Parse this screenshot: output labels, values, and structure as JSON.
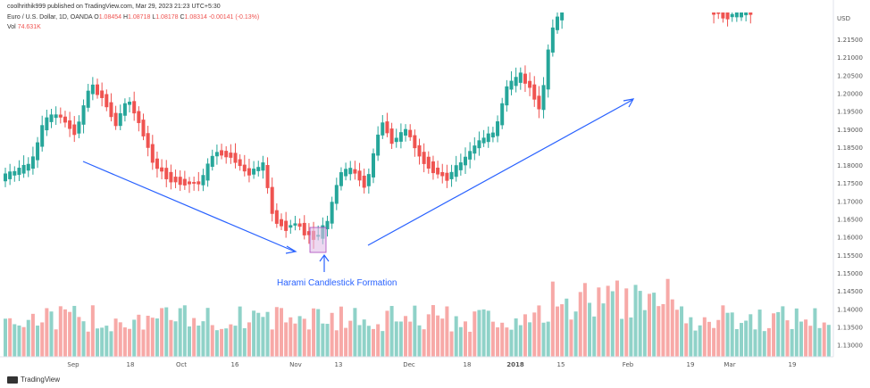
{
  "header": {
    "publish": "coolhrithik999 published on TradingView.com, Mar 29, 2023 21:23 UTC+5:30",
    "symbol_name": "Euro / U.S. Dollar, 1D, OANDA",
    "o_label": "O",
    "o_value": "1.08454",
    "h_label": "H",
    "h_value": "1.08718",
    "l_label": "L",
    "l_value": "1.08178",
    "c_label": "C",
    "c_value": "1.08314",
    "change": "-0.00141 (-0.13%)",
    "vol_label": "Vol",
    "vol_value": "74.631K"
  },
  "annotation": "Harami Candlestick Formation",
  "footer": {
    "brand": "TradingView"
  },
  "colors": {
    "up": "#26a69a",
    "down": "#ef5350",
    "vol_up": "#8fd2c8",
    "vol_down": "#f7a9a7",
    "arrow": "#2962ff",
    "highlight": "#e1bee7"
  },
  "chart_data": {
    "type": "candlestick",
    "currency_label": "USD",
    "y_ticks": [
      "1.21500",
      "1.21000",
      "1.20500",
      "1.20000",
      "1.19500",
      "1.19000",
      "1.18500",
      "1.18000",
      "1.17500",
      "1.17000",
      "1.16500",
      "1.16000",
      "1.15500",
      "1.15000",
      "1.14500",
      "1.14000",
      "1.13500",
      "1.13000"
    ],
    "x_ticks": [
      "Sep",
      "18",
      "Oct",
      "16",
      "Nov",
      "13",
      "Dec",
      "18",
      "2018",
      "15",
      "Feb",
      "19",
      "Mar",
      "19"
    ],
    "x_tick_bold": [
      "2018"
    ],
    "annotations": [
      "Harami Candlestick Formation"
    ]
  }
}
